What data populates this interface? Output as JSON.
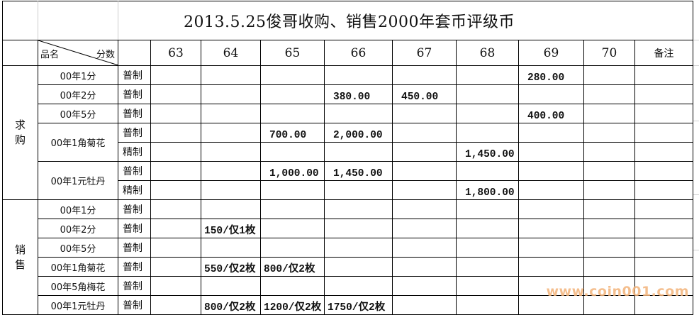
{
  "title": "2013.5.25俊哥收购、销售2000年套币评级币",
  "header": {
    "name_label": "品名",
    "grade_label": "分数",
    "grades": [
      "63",
      "64",
      "65",
      "66",
      "67",
      "68",
      "69",
      "70"
    ],
    "remark": "备注"
  },
  "sections": [
    {
      "label": "求购",
      "kind": "buy",
      "items": [
        {
          "name": "00年1分",
          "rows": [
            {
              "type": "普制",
              "values": [
                "",
                "",
                "",
                "",
                "",
                "",
                "280.00",
                ""
              ]
            }
          ]
        },
        {
          "name": "00年2分",
          "rows": [
            {
              "type": "普制",
              "values": [
                "",
                "",
                "",
                "380.00",
                "450.00",
                "",
                "",
                ""
              ]
            }
          ]
        },
        {
          "name": "00年5分",
          "rows": [
            {
              "type": "普制",
              "values": [
                "",
                "",
                "",
                "",
                "",
                "",
                "400.00",
                ""
              ]
            }
          ]
        },
        {
          "name": "00年1角菊花",
          "rows": [
            {
              "type": "普制",
              "values": [
                "",
                "",
                "700.00",
                "2,000.00",
                "",
                "",
                "",
                ""
              ]
            },
            {
              "type": "精制",
              "values": [
                "",
                "",
                "",
                "",
                "",
                "1,450.00",
                "",
                ""
              ]
            }
          ]
        },
        {
          "name": "00年1元牡丹",
          "rows": [
            {
              "type": "普制",
              "values": [
                "",
                "",
                "1,000.00",
                "1,450.00",
                "",
                "",
                "",
                ""
              ]
            },
            {
              "type": "精制",
              "values": [
                "",
                "",
                "",
                "",
                "",
                "1,800.00",
                "",
                ""
              ]
            }
          ]
        }
      ]
    },
    {
      "label": "销售",
      "kind": "sell",
      "items": [
        {
          "name": "00年1分",
          "rows": [
            {
              "type": "普制",
              "values": [
                "",
                "",
                "",
                "",
                "",
                "",
                "",
                ""
              ]
            }
          ]
        },
        {
          "name": "00年2分",
          "rows": [
            {
              "type": "普制",
              "values": [
                "",
                "150/仅1枚",
                "",
                "",
                "",
                "",
                "",
                ""
              ]
            }
          ]
        },
        {
          "name": "00年5分",
          "rows": [
            {
              "type": "普制",
              "values": [
                "",
                "",
                "",
                "",
                "",
                "",
                "",
                ""
              ]
            }
          ]
        },
        {
          "name": "00年1角菊花",
          "rows": [
            {
              "type": "普制",
              "values": [
                "",
                "550/仅2枚",
                "800/仅2枚",
                "",
                "",
                "",
                "",
                ""
              ]
            }
          ]
        },
        {
          "name": "00年5角梅花",
          "rows": [
            {
              "type": "普制",
              "values": [
                "",
                "",
                "",
                "",
                "",
                "",
                "",
                ""
              ]
            }
          ]
        },
        {
          "name": "00年1元牡丹",
          "rows": [
            {
              "type": "普制",
              "values": [
                "",
                "800/仅2枚",
                "1200/仅2枚",
                "1750/仅2枚",
                "",
                "",
                "",
                ""
              ]
            }
          ]
        }
      ]
    }
  ],
  "watermark": "www.coin001.com"
}
